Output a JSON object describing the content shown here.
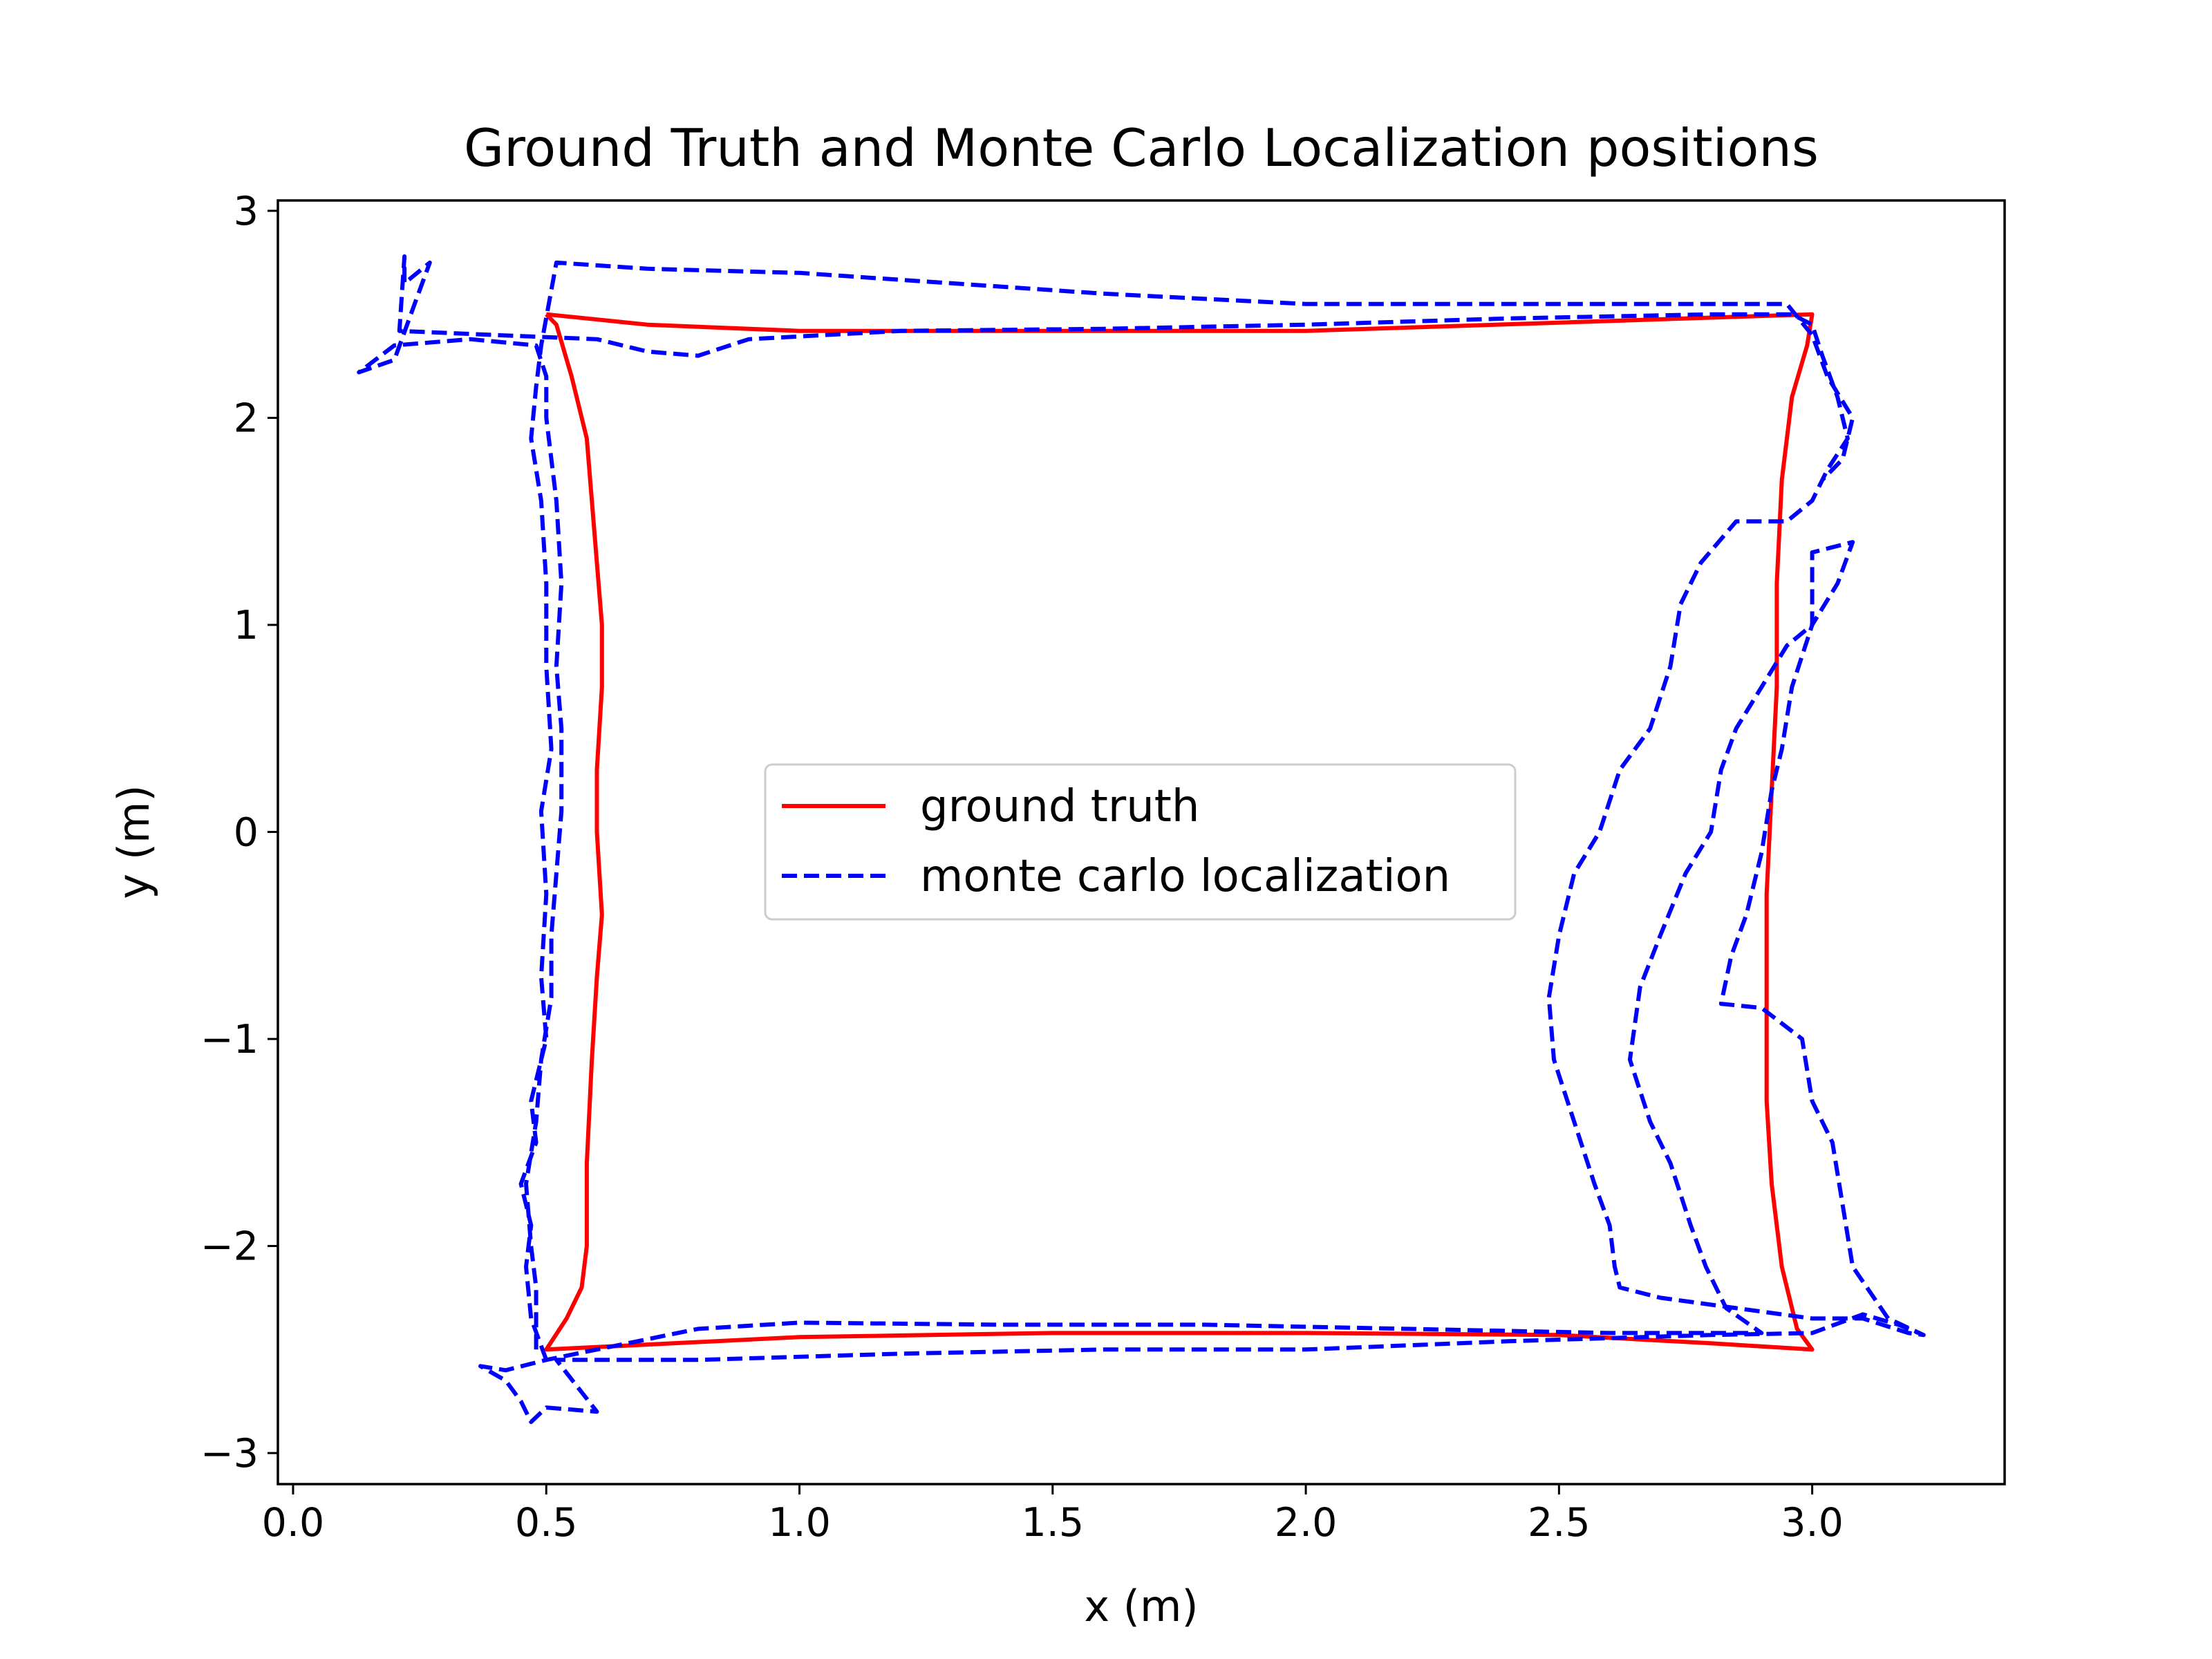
{
  "chart_data": {
    "type": "line",
    "title": "Ground Truth and Monte Carlo Localization positions",
    "xlabel": "x (m)",
    "ylabel": "y (m)",
    "xlim": [
      -0.03,
      3.38
    ],
    "ylim": [
      -3.15,
      3.05
    ],
    "xticks": [
      0.0,
      0.5,
      1.0,
      1.5,
      2.0,
      2.5,
      3.0
    ],
    "xtick_labels": [
      "0.0",
      "0.5",
      "1.0",
      "1.5",
      "2.0",
      "2.5",
      "3.0"
    ],
    "yticks": [
      -3,
      -2,
      -1,
      0,
      1,
      2,
      3
    ],
    "ytick_labels": [
      "−3",
      "−2",
      "−1",
      "0",
      "1",
      "2",
      "3"
    ],
    "grid": false,
    "legend": {
      "placement": "center"
    },
    "series": [
      {
        "name": "ground truth",
        "color": "#ff0000",
        "style": "solid",
        "points": [
          [
            0.5,
            2.5
          ],
          [
            0.52,
            2.45
          ],
          [
            0.55,
            2.2
          ],
          [
            0.58,
            1.9
          ],
          [
            0.59,
            1.6
          ],
          [
            0.6,
            1.3
          ],
          [
            0.61,
            1.0
          ],
          [
            0.61,
            0.7
          ],
          [
            0.6,
            0.3
          ],
          [
            0.6,
            0.0
          ],
          [
            0.61,
            -0.4
          ],
          [
            0.6,
            -0.7
          ],
          [
            0.59,
            -1.1
          ],
          [
            0.58,
            -1.6
          ],
          [
            0.58,
            -2.0
          ],
          [
            0.57,
            -2.2
          ],
          [
            0.54,
            -2.35
          ],
          [
            0.5,
            -2.5
          ],
          [
            1.0,
            -2.44
          ],
          [
            1.5,
            -2.42
          ],
          [
            2.0,
            -2.42
          ],
          [
            2.5,
            -2.43
          ],
          [
            2.8,
            -2.47
          ],
          [
            3.0,
            -2.5
          ],
          [
            2.97,
            -2.4
          ],
          [
            2.94,
            -2.1
          ],
          [
            2.92,
            -1.7
          ],
          [
            2.91,
            -1.3
          ],
          [
            2.91,
            -0.8
          ],
          [
            2.91,
            -0.3
          ],
          [
            2.92,
            0.2
          ],
          [
            2.93,
            0.7
          ],
          [
            2.93,
            1.2
          ],
          [
            2.94,
            1.7
          ],
          [
            2.96,
            2.1
          ],
          [
            2.99,
            2.35
          ],
          [
            3.0,
            2.5
          ],
          [
            2.5,
            2.46
          ],
          [
            2.0,
            2.42
          ],
          [
            1.5,
            2.42
          ],
          [
            1.0,
            2.42
          ],
          [
            0.7,
            2.45
          ],
          [
            0.5,
            2.5
          ]
        ]
      },
      {
        "name": "monte carlo localization",
        "color": "#0000ff",
        "style": "dashed",
        "points": [
          [
            0.48,
            -2.5
          ],
          [
            0.48,
            -2.2
          ],
          [
            0.47,
            -2.0
          ],
          [
            0.46,
            -1.7
          ],
          [
            0.48,
            -1.4
          ],
          [
            0.49,
            -1.1
          ],
          [
            0.51,
            -0.8
          ],
          [
            0.51,
            -0.5
          ],
          [
            0.52,
            -0.2
          ],
          [
            0.53,
            0.1
          ],
          [
            0.53,
            0.5
          ],
          [
            0.52,
            0.8
          ],
          [
            0.53,
            1.2
          ],
          [
            0.52,
            1.6
          ],
          [
            0.5,
            2.0
          ],
          [
            0.5,
            2.2
          ],
          [
            0.48,
            2.35
          ],
          [
            0.35,
            2.38
          ],
          [
            0.2,
            2.35
          ],
          [
            0.13,
            2.22
          ],
          [
            0.2,
            2.28
          ],
          [
            0.24,
            2.55
          ],
          [
            0.27,
            2.75
          ],
          [
            0.22,
            2.65
          ],
          [
            0.22,
            2.78
          ],
          [
            0.21,
            2.42
          ],
          [
            0.4,
            2.4
          ],
          [
            0.6,
            2.38
          ],
          [
            0.7,
            2.32
          ],
          [
            0.8,
            2.3
          ],
          [
            0.9,
            2.38
          ],
          [
            1.2,
            2.42
          ],
          [
            1.6,
            2.43
          ],
          [
            2.0,
            2.45
          ],
          [
            2.4,
            2.48
          ],
          [
            2.8,
            2.5
          ],
          [
            2.96,
            2.5
          ],
          [
            3.0,
            2.45
          ],
          [
            3.02,
            2.3
          ],
          [
            3.05,
            2.1
          ],
          [
            3.07,
            1.9
          ],
          [
            3.03,
            1.75
          ],
          [
            3.0,
            1.6
          ],
          [
            2.95,
            1.5
          ],
          [
            2.85,
            1.5
          ],
          [
            2.78,
            1.3
          ],
          [
            2.74,
            1.1
          ],
          [
            2.72,
            0.8
          ],
          [
            2.68,
            0.5
          ],
          [
            2.62,
            0.3
          ],
          [
            2.58,
            0.0
          ],
          [
            2.53,
            -0.2
          ],
          [
            2.5,
            -0.5
          ],
          [
            2.48,
            -0.8
          ],
          [
            2.49,
            -1.1
          ],
          [
            2.53,
            -1.4
          ],
          [
            2.57,
            -1.7
          ],
          [
            2.6,
            -1.9
          ],
          [
            2.61,
            -2.1
          ],
          [
            2.62,
            -2.2
          ],
          [
            2.7,
            -2.25
          ],
          [
            2.85,
            -2.3
          ],
          [
            3.0,
            -2.35
          ],
          [
            3.1,
            -2.35
          ],
          [
            3.19,
            -2.42
          ],
          [
            3.22,
            -2.43
          ],
          [
            3.15,
            -2.35
          ],
          [
            3.08,
            -2.1
          ],
          [
            3.06,
            -1.8
          ],
          [
            3.04,
            -1.5
          ],
          [
            3.0,
            -1.3
          ],
          [
            2.98,
            -1.0
          ],
          [
            2.9,
            -0.85
          ],
          [
            2.82,
            -0.83
          ],
          [
            2.84,
            -0.6
          ],
          [
            2.87,
            -0.4
          ],
          [
            2.9,
            -0.1
          ],
          [
            2.92,
            0.2
          ],
          [
            2.94,
            0.4
          ],
          [
            2.96,
            0.7
          ],
          [
            3.0,
            1.0
          ],
          [
            3.05,
            1.2
          ],
          [
            3.08,
            1.4
          ],
          [
            3.0,
            1.35
          ],
          [
            3.0,
            1.0
          ],
          [
            2.95,
            0.9
          ],
          [
            2.9,
            0.7
          ],
          [
            2.85,
            0.5
          ],
          [
            2.82,
            0.3
          ],
          [
            2.8,
            0.0
          ],
          [
            2.75,
            -0.2
          ],
          [
            2.7,
            -0.5
          ],
          [
            2.66,
            -0.75
          ],
          [
            2.64,
            -1.1
          ],
          [
            2.68,
            -1.4
          ],
          [
            2.72,
            -1.6
          ],
          [
            2.76,
            -1.9
          ],
          [
            2.79,
            -2.1
          ],
          [
            2.83,
            -2.3
          ],
          [
            2.9,
            -2.42
          ],
          [
            2.6,
            -2.42
          ],
          [
            2.2,
            -2.4
          ],
          [
            1.8,
            -2.38
          ],
          [
            1.4,
            -2.38
          ],
          [
            1.0,
            -2.37
          ],
          [
            0.8,
            -2.4
          ],
          [
            0.6,
            -2.5
          ],
          [
            0.5,
            -2.55
          ],
          [
            0.42,
            -2.6
          ],
          [
            0.37,
            -2.58
          ],
          [
            0.42,
            -2.65
          ],
          [
            0.45,
            -2.75
          ],
          [
            0.47,
            -2.85
          ],
          [
            0.5,
            -2.78
          ],
          [
            0.6,
            -2.8
          ],
          [
            0.52,
            -2.55
          ],
          [
            0.8,
            -2.55
          ],
          [
            1.2,
            -2.52
          ],
          [
            1.6,
            -2.5
          ],
          [
            2.0,
            -2.5
          ],
          [
            2.4,
            -2.46
          ],
          [
            2.8,
            -2.43
          ],
          [
            3.0,
            -2.42
          ],
          [
            3.1,
            -2.33
          ],
          [
            3.17,
            -2.38
          ],
          [
            3.22,
            -2.43
          ]
        ]
      },
      {
        "name": "monte carlo localization",
        "color": "#0000ff",
        "style": "dashed",
        "points": [
          [
            0.5,
            -2.55
          ],
          [
            0.47,
            -2.35
          ],
          [
            0.46,
            -2.1
          ],
          [
            0.47,
            -1.9
          ],
          [
            0.45,
            -1.7
          ],
          [
            0.48,
            -1.5
          ],
          [
            0.47,
            -1.3
          ],
          [
            0.5,
            -1.0
          ],
          [
            0.49,
            -0.7
          ],
          [
            0.5,
            -0.3
          ],
          [
            0.49,
            0.1
          ],
          [
            0.51,
            0.4
          ],
          [
            0.5,
            0.8
          ],
          [
            0.5,
            1.2
          ],
          [
            0.49,
            1.6
          ],
          [
            0.47,
            1.9
          ],
          [
            0.48,
            2.15
          ],
          [
            0.49,
            2.35
          ],
          [
            0.52,
            2.75
          ],
          [
            0.7,
            2.72
          ],
          [
            1.0,
            2.7
          ],
          [
            1.3,
            2.65
          ],
          [
            1.6,
            2.6
          ],
          [
            2.0,
            2.55
          ],
          [
            2.4,
            2.55
          ],
          [
            2.8,
            2.55
          ],
          [
            2.95,
            2.55
          ],
          [
            3.0,
            2.4
          ],
          [
            3.03,
            2.2
          ],
          [
            3.08,
            2.0
          ],
          [
            3.06,
            1.8
          ],
          [
            3.02,
            1.7
          ]
        ]
      }
    ]
  }
}
